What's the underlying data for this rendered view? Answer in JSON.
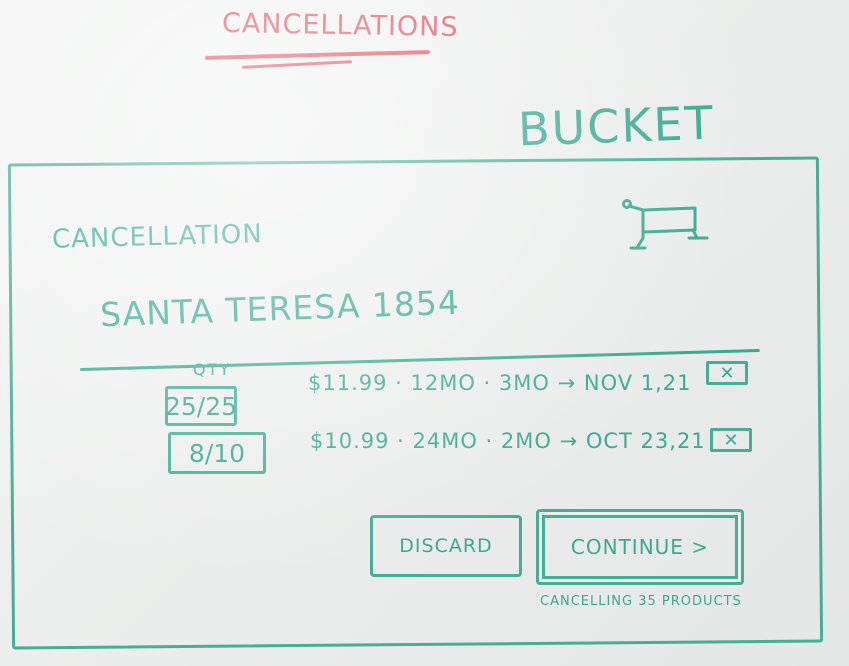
{
  "heading": "CANCELLATIONS",
  "bucket_label": "BUCKET",
  "panel": {
    "title": "CANCELLATION",
    "product_name": "SANTA TERESA 1854",
    "qty_header": "QTY",
    "items": [
      {
        "qty": "25/25",
        "details": "$11.99 · 12MO · 3MO → NOV 1,21",
        "remove": "✕"
      },
      {
        "qty": "8/10",
        "details": "$10.99 · 24MO · 2MO → OCT 23,21",
        "remove": "✕"
      }
    ],
    "discard_label": "DISCARD",
    "continue_label": "CONTINUE >",
    "summary_note": "CANCELLING 35 PRODUCTS"
  },
  "colors": {
    "marker_red": "#e0505f",
    "marker_teal": "#3aa98f",
    "board": "#eceeed"
  },
  "icons": {
    "cart": "shopping-cart-icon"
  }
}
